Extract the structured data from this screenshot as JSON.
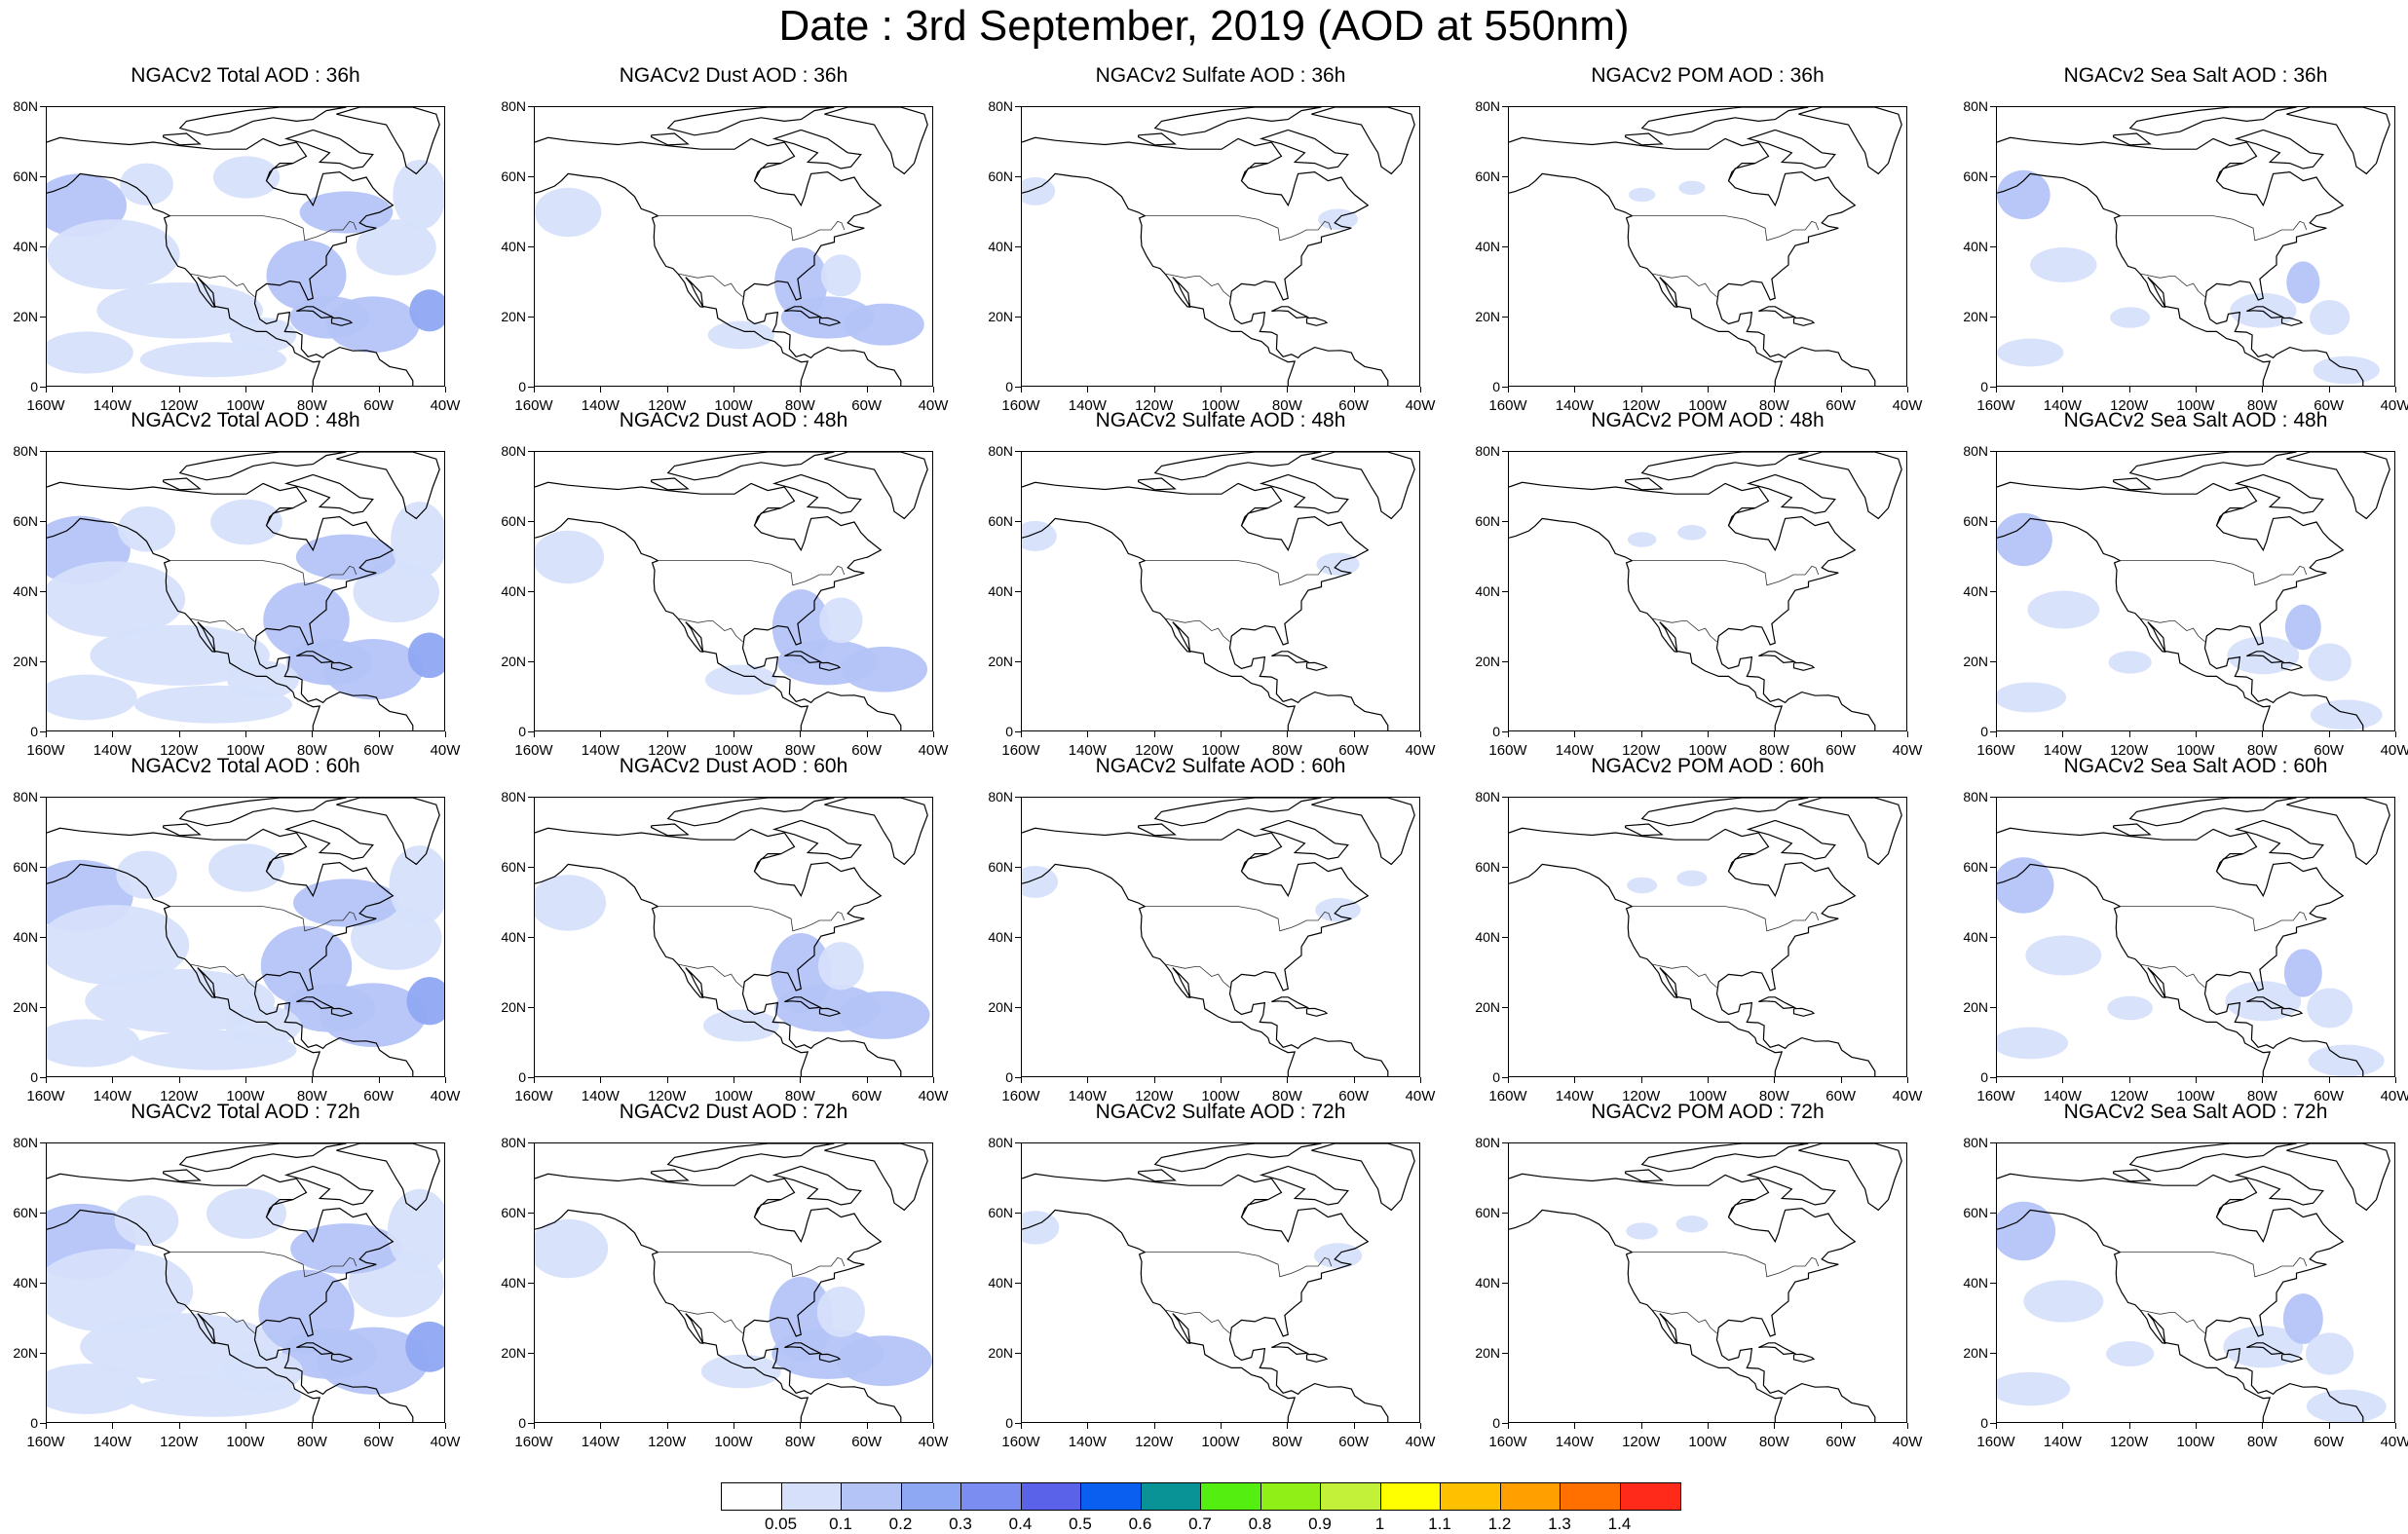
{
  "title": "Date : 3rd September, 2019 (AOD at 550nm)",
  "x_ticks": [
    "160W",
    "140W",
    "120W",
    "100W",
    "80W",
    "60W",
    "40W"
  ],
  "y_ticks": [
    "80N",
    "60N",
    "40N",
    "20N",
    "0"
  ],
  "panels": [
    [
      {
        "title": "NGACv2 Total AOD : 36h",
        "species": "total",
        "hour": 36
      },
      {
        "title": "NGACv2 Dust AOD : 36h",
        "species": "dust",
        "hour": 36
      },
      {
        "title": "NGACv2 Sulfate AOD : 36h",
        "species": "sulfate",
        "hour": 36
      },
      {
        "title": "NGACv2 POM AOD : 36h",
        "species": "pom",
        "hour": 36
      },
      {
        "title": "NGACv2 Sea Salt AOD : 36h",
        "species": "seasalt",
        "hour": 36
      }
    ],
    [
      {
        "title": "NGACv2 Total AOD : 48h",
        "species": "total",
        "hour": 48
      },
      {
        "title": "NGACv2 Dust AOD : 48h",
        "species": "dust",
        "hour": 48
      },
      {
        "title": "NGACv2 Sulfate AOD : 48h",
        "species": "sulfate",
        "hour": 48
      },
      {
        "title": "NGACv2 POM AOD : 48h",
        "species": "pom",
        "hour": 48
      },
      {
        "title": "NGACv2 Sea Salt AOD : 48h",
        "species": "seasalt",
        "hour": 48
      }
    ],
    [
      {
        "title": "NGACv2 Total AOD : 60h",
        "species": "total",
        "hour": 60
      },
      {
        "title": "NGACv2 Dust AOD : 60h",
        "species": "dust",
        "hour": 60
      },
      {
        "title": "NGACv2 Sulfate AOD : 60h",
        "species": "sulfate",
        "hour": 60
      },
      {
        "title": "NGACv2 POM AOD : 60h",
        "species": "pom",
        "hour": 60
      },
      {
        "title": "NGACv2 Sea Salt AOD : 60h",
        "species": "seasalt",
        "hour": 60
      }
    ],
    [
      {
        "title": "NGACv2 Total AOD : 72h",
        "species": "total",
        "hour": 72
      },
      {
        "title": "NGACv2 Dust AOD : 72h",
        "species": "dust",
        "hour": 72
      },
      {
        "title": "NGACv2 Sulfate AOD : 72h",
        "species": "sulfate",
        "hour": 72
      },
      {
        "title": "NGACv2 POM AOD : 72h",
        "species": "pom",
        "hour": 72
      },
      {
        "title": "NGACv2 Sea Salt  AOD : 72h",
        "species": "seasalt",
        "hour": 72
      }
    ]
  ],
  "colorbar": {
    "colors": [
      "#ffffff",
      "#d6e0fb",
      "#b4c4f7",
      "#8fa8f3",
      "#7b8df1",
      "#5a62ea",
      "#0a5ff0",
      "#0a9396",
      "#55ee11",
      "#8fef16",
      "#c3f038",
      "#ffff00",
      "#ffc000",
      "#ffa000",
      "#ff7000",
      "#ff2a1a"
    ],
    "labels": [
      "0.05",
      "0.1",
      "0.2",
      "0.3",
      "0.4",
      "0.5",
      "0.6",
      "0.7",
      "0.8",
      "0.9",
      "1",
      "1.1",
      "1.2",
      "1.3",
      "1.4"
    ]
  },
  "map_extent": {
    "lon": [
      -160,
      -40
    ],
    "lat": [
      0,
      80
    ]
  }
}
